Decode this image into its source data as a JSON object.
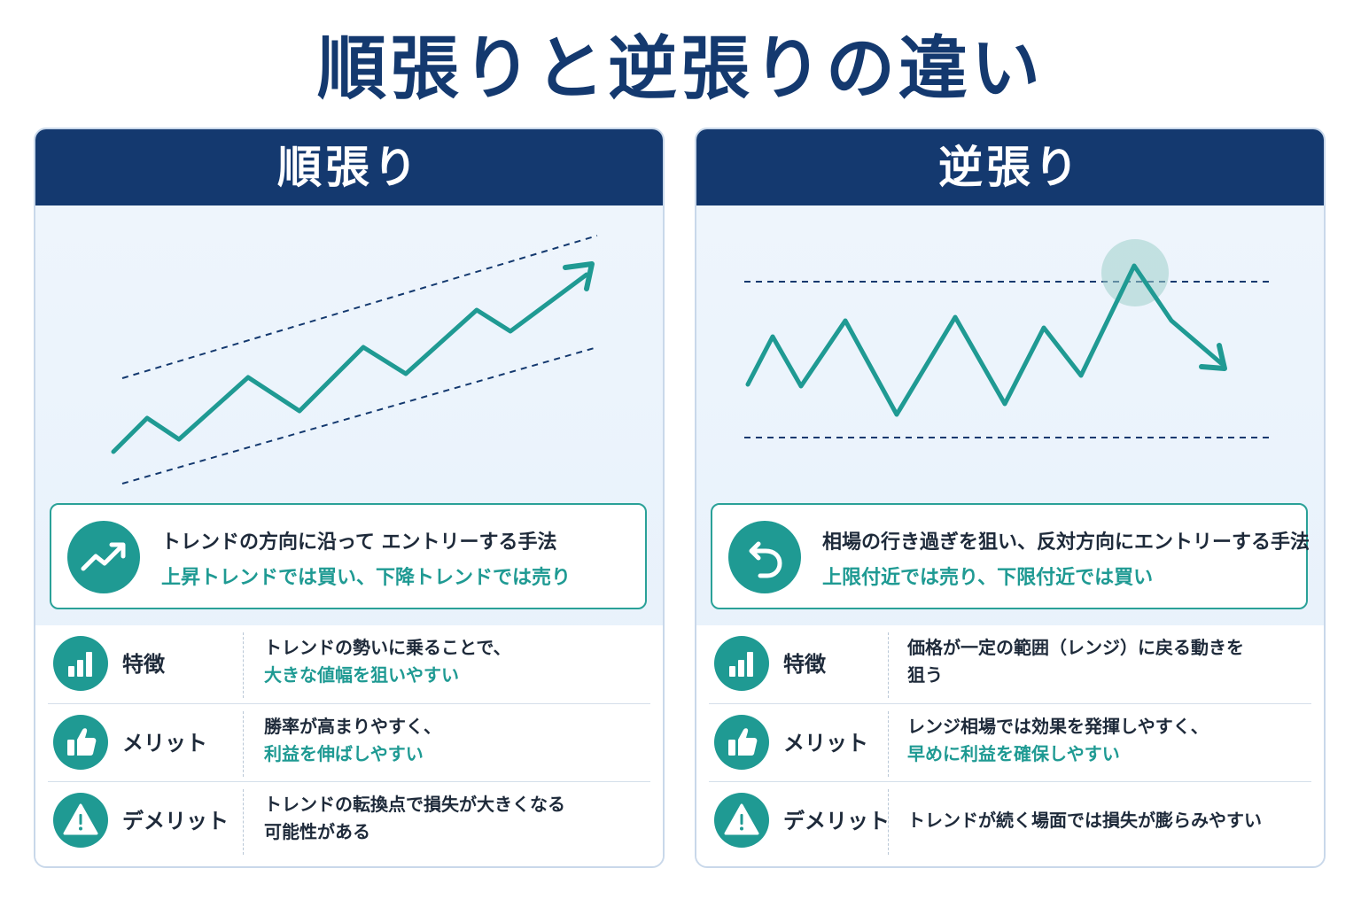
{
  "title": "順張りと逆張りの違い",
  "colors": {
    "navy": "#14396f",
    "teal": "#1f9a93",
    "text": "#1e2a3a"
  },
  "left": {
    "header": "順張り",
    "description": {
      "icon": "trend-up-icon",
      "line1": "トレンドの方向に沿って エントリーする手法",
      "line2": "上昇トレンドでは買い、下降トレンドでは売り"
    },
    "rows": [
      {
        "icon": "bar-chart-icon",
        "label": "特徴",
        "text1": "トレンドの勢いに乗ることで、",
        "text2": "大きな値幅を狙いやすい"
      },
      {
        "icon": "thumbs-up-icon",
        "label": "メリット",
        "text1": "勝率が高まりやすく、",
        "text2": "利益を伸ばしやすい"
      },
      {
        "icon": "warning-icon",
        "label": "デメリット",
        "text1": "トレンドの転換点で損失が大きくなる",
        "text1b": "可能性がある"
      }
    ]
  },
  "right": {
    "header": "逆張り",
    "description": {
      "icon": "undo-arrow-icon",
      "line1": "相場の行き過ぎを狙い、反対方向にエントリーする手法",
      "line2": "上限付近では売り、下限付近では買い"
    },
    "rows": [
      {
        "icon": "bar-chart-icon",
        "label": "特徴",
        "text1": "価格が一定の範囲（レンジ）に戻る動きを",
        "text1b": "狙う"
      },
      {
        "icon": "thumbs-up-icon",
        "label": "メリット",
        "text1": "レンジ相場では効果を発揮しやすく、",
        "text2": "早めに利益を確保しやすい"
      },
      {
        "icon": "warning-icon",
        "label": "デメリット",
        "text1": "トレンドが続く場面では損失が膨らみやすい"
      }
    ]
  }
}
